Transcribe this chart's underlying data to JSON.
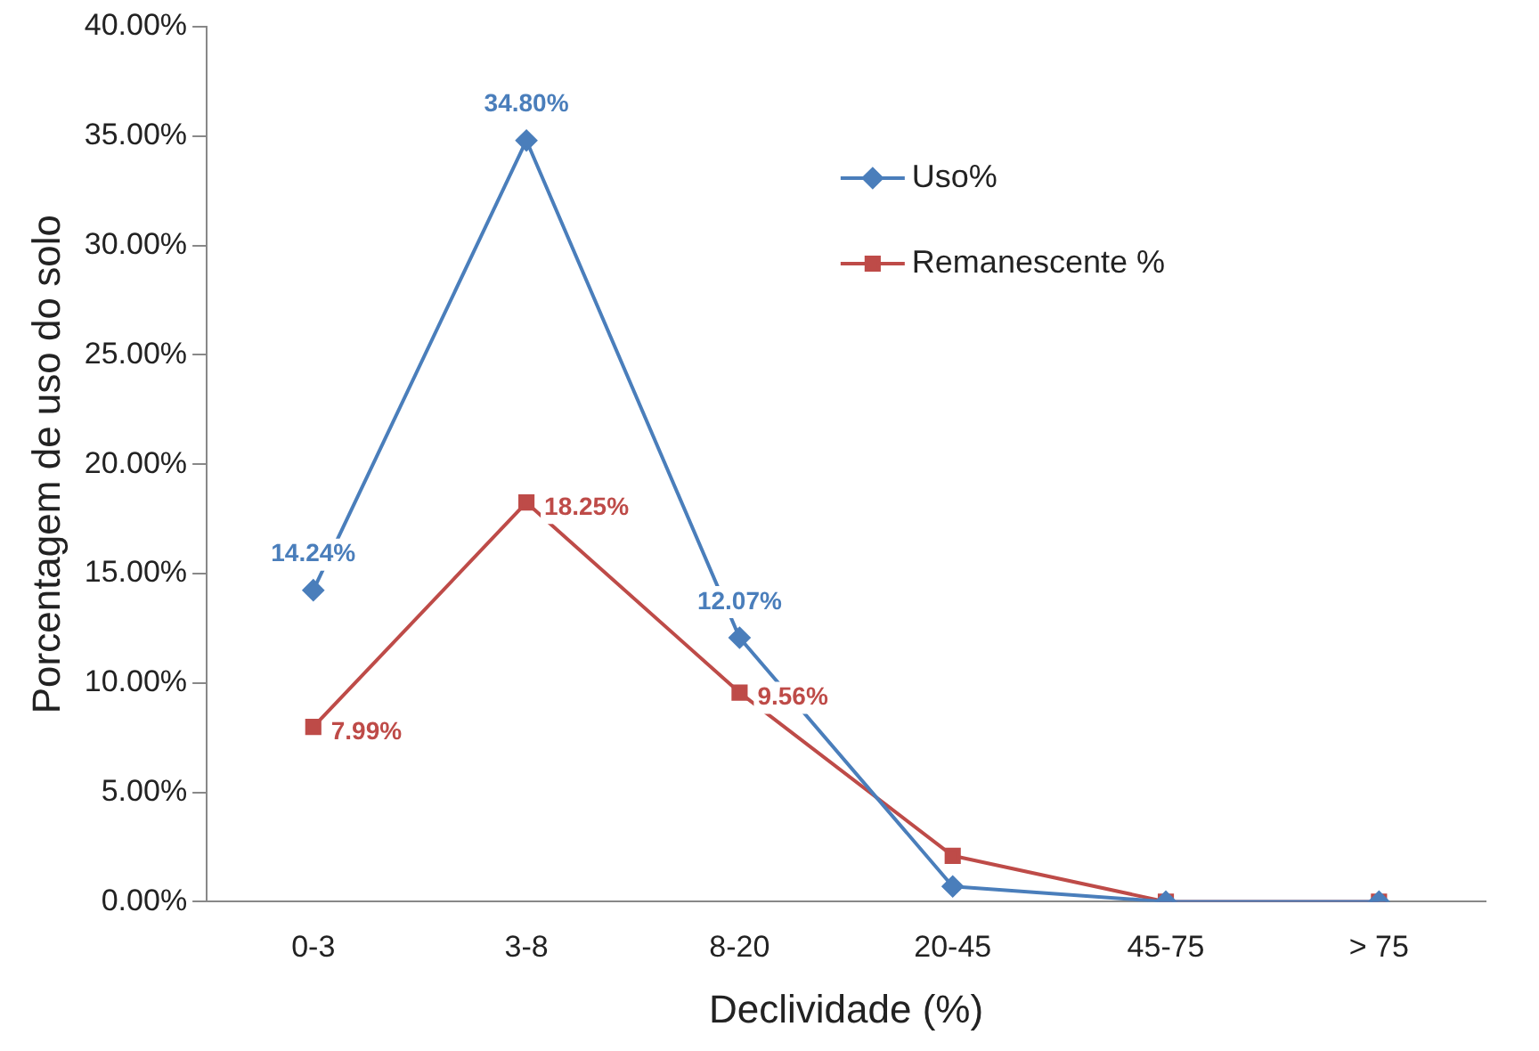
{
  "chart_data": {
    "type": "line",
    "xlabel": "Declividade (%)",
    "ylabel": "Porcentagem de uso do solo",
    "categories": [
      "0-3",
      "3-8",
      "8-20",
      "20-45",
      "45-75",
      "> 75"
    ],
    "series": [
      {
        "name": "Uso%",
        "color": "#4a7ebb",
        "marker": "diamond",
        "values": [
          14.24,
          34.8,
          12.07,
          0.7,
          0,
          0
        ],
        "value_labels": [
          "14.24%",
          "34.80%",
          "12.07%",
          null,
          null,
          null
        ]
      },
      {
        "name": "Remanescente %",
        "color": "#be4b48",
        "marker": "square",
        "values": [
          7.99,
          18.25,
          9.56,
          2.1,
          0,
          0
        ],
        "value_labels": [
          "7.99%",
          "18.25%",
          "9.56%",
          null,
          null,
          null
        ]
      }
    ],
    "ylim": [
      0,
      40
    ],
    "yticks": [
      {
        "value": 0,
        "label": "0.00%"
      },
      {
        "value": 5,
        "label": "5.00%"
      },
      {
        "value": 10,
        "label": "10.00%"
      },
      {
        "value": 15,
        "label": "15.00%"
      },
      {
        "value": 20,
        "label": "20.00%"
      },
      {
        "value": 25,
        "label": "25.00%"
      },
      {
        "value": 30,
        "label": "30.00%"
      },
      {
        "value": 35,
        "label": "35.00%"
      },
      {
        "value": 40,
        "label": "40.00%"
      }
    ],
    "grid": false,
    "legend": "top right",
    "line_style": "solid"
  }
}
